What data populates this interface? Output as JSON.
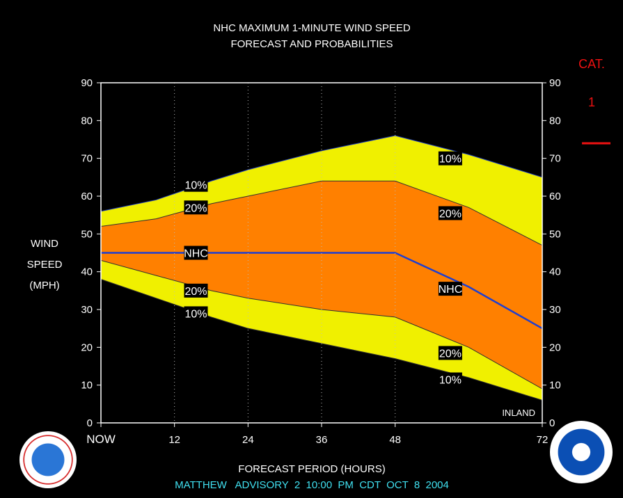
{
  "chart_data": {
    "type": "area",
    "title": "NHC MAXIMUM 1-MINUTE WIND SPEED",
    "subtitle": "FORECAST AND PROBABILITIES",
    "xlabel": "FORECAST PERIOD (HOURS)",
    "ylabel_lines": [
      "WIND",
      "SPEED",
      "(MPH)"
    ],
    "xlim": [
      0,
      72
    ],
    "ylim": [
      0,
      90
    ],
    "x_ticks": [
      0,
      12,
      24,
      36,
      48,
      72
    ],
    "x_tick_labels": [
      "NOW",
      "12",
      "24",
      "36",
      "48",
      "72"
    ],
    "y_ticks": [
      0,
      10,
      20,
      30,
      40,
      50,
      60,
      70,
      80,
      90
    ],
    "y_tick_labels": [
      "0",
      "10",
      "20",
      "30",
      "40",
      "50",
      "60",
      "70",
      "80",
      "90"
    ],
    "grid_vertical_dotted_at": [
      12,
      24,
      36,
      48
    ],
    "x": [
      0,
      9,
      18,
      24,
      36,
      48,
      60,
      72
    ],
    "series": [
      {
        "name": "10%",
        "role": "upper_10",
        "color": "#f0f000",
        "values": [
          56,
          59,
          64,
          67,
          72,
          76,
          71,
          65
        ]
      },
      {
        "name": "20%",
        "role": "upper_20",
        "color": "#ff8000",
        "values": [
          52,
          54,
          58,
          60,
          64,
          64,
          57,
          47
        ]
      },
      {
        "name": "NHC",
        "role": "forecast",
        "color": "#1f3fd0",
        "values": [
          45,
          45,
          45,
          45,
          45,
          45,
          36,
          25
        ]
      },
      {
        "name": "20%",
        "role": "lower_20",
        "color": "#ff8000",
        "values": [
          43,
          39,
          35,
          33,
          30,
          28,
          20,
          9
        ]
      },
      {
        "name": "10%",
        "role": "lower_10",
        "color": "#f0f000",
        "values": [
          38,
          33,
          28,
          25,
          21,
          17,
          12,
          6
        ]
      }
    ],
    "in_plot_labels": [
      {
        "text": "10%",
        "x": 15.5,
        "y": 63
      },
      {
        "text": "20%",
        "x": 15.5,
        "y": 57
      },
      {
        "text": "NHC",
        "x": 15.5,
        "y": 45
      },
      {
        "text": "20%",
        "x": 15.5,
        "y": 35
      },
      {
        "text": "10%",
        "x": 15.5,
        "y": 29
      },
      {
        "text": "10%",
        "x": 57,
        "y": 70
      },
      {
        "text": "20%",
        "x": 57,
        "y": 55.5
      },
      {
        "text": "NHC",
        "x": 57,
        "y": 35.5
      },
      {
        "text": "20%",
        "x": 57,
        "y": 18.5
      },
      {
        "text": "10%",
        "x": 57,
        "y": 11.5
      }
    ],
    "inland_label": "INLAND",
    "category_legend": {
      "header": "CAT.",
      "value": "1",
      "color": "#ee1111"
    },
    "advisory": "MATTHEW   ADVISORY  2  10:00  PM  CDT  OCT  8  2004",
    "advisory_color": "#40e0f0"
  }
}
